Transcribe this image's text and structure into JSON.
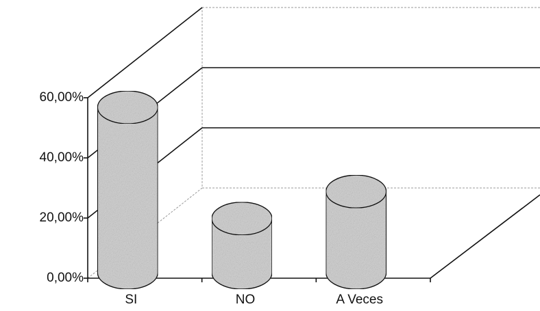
{
  "chart_data": {
    "type": "bar3d",
    "categories": [
      "SI",
      "NO",
      "A Veces"
    ],
    "values": [
      55,
      18,
      27
    ],
    "color": "#d4d4d4",
    "ylim": [
      0,
      60
    ],
    "yticks": [
      {
        "value": 0,
        "label": "0,00%"
      },
      {
        "value": 20,
        "label": "20,00%"
      },
      {
        "value": 40,
        "label": "40,00%"
      },
      {
        "value": 60,
        "label": "60,00%"
      }
    ],
    "grid": true
  }
}
